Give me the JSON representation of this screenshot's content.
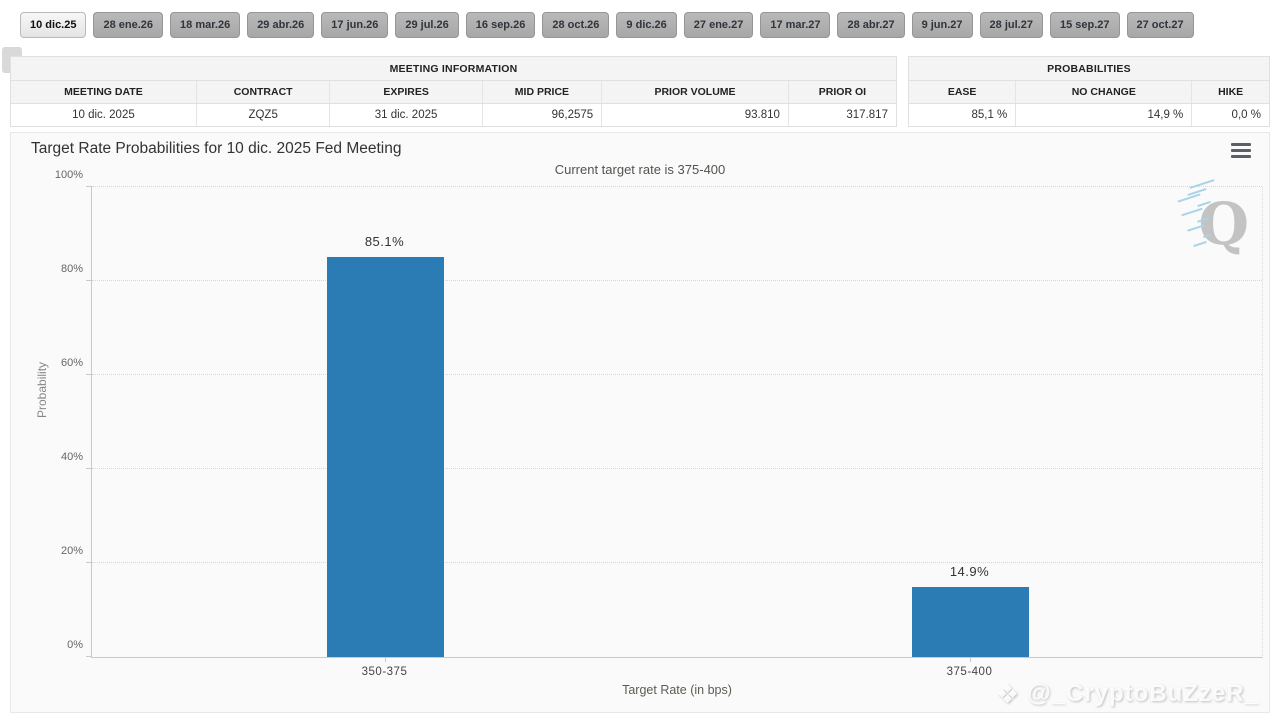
{
  "tabs": {
    "selected_index": 0,
    "items": [
      "10 dic.25",
      "28 ene.26",
      "18 mar.26",
      "29 abr.26",
      "17 jun.26",
      "29 jul.26",
      "16 sep.26",
      "28 oct.26",
      "9 dic.26",
      "27 ene.27",
      "17 mar.27",
      "28 abr.27",
      "9 jun.27",
      "28 jul.27",
      "15 sep.27",
      "27 oct.27"
    ]
  },
  "meeting_info": {
    "title": "MEETING INFORMATION",
    "columns": [
      "MEETING DATE",
      "CONTRACT",
      "EXPIRES",
      "MID PRICE",
      "PRIOR VOLUME",
      "PRIOR OI"
    ],
    "values": [
      "10 dic. 2025",
      "ZQZ5",
      "31 dic. 2025",
      "96,2575",
      "93.810",
      "317.817"
    ]
  },
  "probabilities": {
    "title": "PROBABILITIES",
    "columns": [
      "EASE",
      "NO CHANGE",
      "HIKE"
    ],
    "values": [
      "85,1 %",
      "14,9 %",
      "0,0 %"
    ]
  },
  "chart": {
    "title": "Target Rate Probabilities for 10 dic. 2025 Fed Meeting",
    "subtitle": "Current target rate is 375-400",
    "menu_icon": "hamburger-icon"
  },
  "chart_data": {
    "type": "bar",
    "categories": [
      "350-375",
      "375-400"
    ],
    "values": [
      85.1,
      14.9
    ],
    "value_labels": [
      "85.1%",
      "14.9%"
    ],
    "title": "Target Rate Probabilities for 10 dic. 2025 Fed Meeting",
    "subtitle": "Current target rate is 375-400",
    "xlabel": "Target Rate (in bps)",
    "ylabel": "Probability",
    "ylim": [
      0,
      100
    ],
    "yticks": [
      "0%",
      "20%",
      "40%",
      "60%",
      "80%",
      "100%"
    ],
    "bar_color": "#2b7cb4",
    "grid": "horizontal-dotted",
    "legend": "none"
  },
  "watermarks": {
    "q_logo": "Q",
    "credit": "@_CryptoBuZzeR_",
    "credit_icon": "binance-diamond-icon"
  }
}
